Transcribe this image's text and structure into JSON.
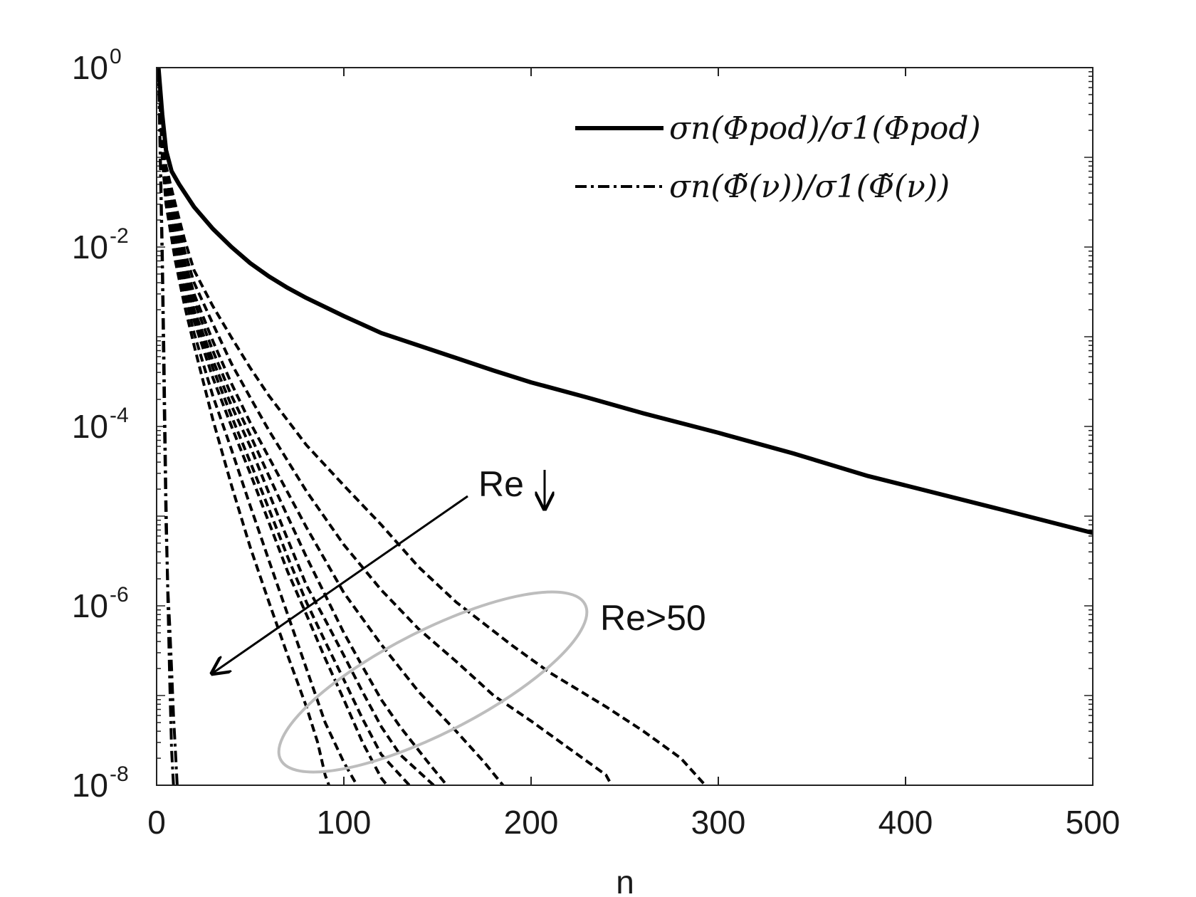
{
  "chart_data": {
    "type": "line",
    "xlabel": "n",
    "ylabel": "",
    "xlim": [
      0,
      500
    ],
    "ylim": [
      1e-08,
      1
    ],
    "yscale": "log",
    "grid": false,
    "legend_position": "top-right",
    "x_ticks": [
      "0",
      "100",
      "200",
      "300",
      "400",
      "500"
    ],
    "y_ticks": [
      {
        "base": "10",
        "exp": "0"
      },
      {
        "base": "10",
        "exp": "-2"
      },
      {
        "base": "10",
        "exp": "-4"
      },
      {
        "base": "10",
        "exp": "-6"
      },
      {
        "base": "10",
        "exp": "-8"
      }
    ],
    "legend": [
      {
        "label": "σn(Φpod)/σ1(Φpod)",
        "style": "solid"
      },
      {
        "label": "σn(Φ̃(ν))/σ1(Φ̃(ν))",
        "style": "dash-dot"
      }
    ],
    "series": [
      {
        "style": "solid",
        "points": [
          [
            1,
            1
          ],
          [
            3,
            0.3
          ],
          [
            5,
            0.12
          ],
          [
            8,
            0.07
          ],
          [
            12,
            0.05
          ],
          [
            20,
            0.028
          ],
          [
            30,
            0.016
          ],
          [
            40,
            0.01
          ],
          [
            50,
            0.0066
          ],
          [
            60,
            0.0047
          ],
          [
            70,
            0.0035
          ],
          [
            80,
            0.0027
          ],
          [
            100,
            0.0017
          ],
          [
            120,
            0.0011
          ],
          [
            150,
            0.00068
          ],
          [
            180,
            0.00042
          ],
          [
            200,
            0.00031
          ],
          [
            230,
            0.00021
          ],
          [
            260,
            0.00014
          ],
          [
            300,
            8.5e-05
          ],
          [
            340,
            5e-05
          ],
          [
            380,
            2.8e-05
          ],
          [
            400,
            2.2e-05
          ],
          [
            450,
            1.2e-05
          ],
          [
            500,
            6.5e-06
          ]
        ]
      },
      {
        "style": "dashed",
        "points": [
          [
            1,
            1
          ],
          [
            3,
            0.2
          ],
          [
            5,
            0.08
          ],
          [
            10,
            0.03
          ],
          [
            15,
            0.012
          ],
          [
            20,
            0.0055
          ],
          [
            30,
            0.0022
          ],
          [
            40,
            0.00098
          ],
          [
            50,
            0.00045
          ],
          [
            60,
            0.00022
          ],
          [
            80,
            6.2e-05
          ],
          [
            100,
            2.2e-05
          ],
          [
            120,
            8e-06
          ],
          [
            140,
            2.7e-06
          ],
          [
            160,
            1.1e-06
          ],
          [
            190,
            3.6e-07
          ],
          [
            210,
            1.8e-07
          ],
          [
            240,
            7.5e-08
          ],
          [
            260,
            4e-08
          ],
          [
            280,
            2e-08
          ],
          [
            293,
            1e-08
          ]
        ]
      },
      {
        "style": "dashed",
        "points": [
          [
            1,
            1
          ],
          [
            3,
            0.18
          ],
          [
            5,
            0.07
          ],
          [
            10,
            0.025
          ],
          [
            15,
            0.009
          ],
          [
            20,
            0.004
          ],
          [
            30,
            0.0014
          ],
          [
            40,
            0.0005
          ],
          [
            50,
            0.00021
          ],
          [
            60,
            9e-05
          ],
          [
            80,
            1.9e-05
          ],
          [
            100,
            4.8e-06
          ],
          [
            120,
            1.5e-06
          ],
          [
            140,
            5.5e-07
          ],
          [
            160,
            2.4e-07
          ],
          [
            180,
            1e-07
          ],
          [
            200,
            5.2e-08
          ],
          [
            220,
            2.6e-08
          ],
          [
            240,
            1.3e-08
          ],
          [
            243,
            1e-08
          ]
        ]
      },
      {
        "style": "dashed",
        "points": [
          [
            1,
            1
          ],
          [
            3,
            0.16
          ],
          [
            5,
            0.06
          ],
          [
            10,
            0.02
          ],
          [
            15,
            0.007
          ],
          [
            20,
            0.003
          ],
          [
            30,
            0.0009
          ],
          [
            40,
            0.0003
          ],
          [
            50,
            0.00011
          ],
          [
            60,
            4.5e-05
          ],
          [
            80,
            7.5e-06
          ],
          [
            100,
            1.4e-06
          ],
          [
            120,
            3.7e-07
          ],
          [
            140,
            1.1e-07
          ],
          [
            160,
            4e-08
          ],
          [
            175,
            1.8e-08
          ],
          [
            185,
            1e-08
          ]
        ]
      },
      {
        "style": "dashed",
        "points": [
          [
            1,
            1
          ],
          [
            3,
            0.15
          ],
          [
            5,
            0.055
          ],
          [
            10,
            0.017
          ],
          [
            15,
            0.006
          ],
          [
            20,
            0.0025
          ],
          [
            30,
            0.0007
          ],
          [
            40,
            0.00022
          ],
          [
            50,
            8e-05
          ],
          [
            60,
            2.8e-05
          ],
          [
            80,
            3.5e-06
          ],
          [
            100,
            5e-07
          ],
          [
            110,
            2.1e-07
          ],
          [
            120,
            9e-08
          ],
          [
            130,
            4.5e-08
          ],
          [
            145,
            1.8e-08
          ],
          [
            155,
            1e-08
          ]
        ]
      },
      {
        "style": "dashed",
        "points": [
          [
            1,
            1
          ],
          [
            3,
            0.14
          ],
          [
            5,
            0.05
          ],
          [
            10,
            0.015
          ],
          [
            15,
            0.005
          ],
          [
            20,
            0.002
          ],
          [
            30,
            0.00055
          ],
          [
            40,
            0.00017
          ],
          [
            50,
            6e-05
          ],
          [
            60,
            1.8e-05
          ],
          [
            70,
            5.5e-06
          ],
          [
            80,
            1.7e-06
          ],
          [
            90,
            7e-07
          ],
          [
            100,
            2.8e-07
          ],
          [
            110,
            1.1e-07
          ],
          [
            120,
            4.5e-08
          ],
          [
            130,
            2.2e-08
          ],
          [
            148,
            1e-08
          ]
        ]
      },
      {
        "style": "dashed",
        "points": [
          [
            1,
            1
          ],
          [
            3,
            0.13
          ],
          [
            5,
            0.045
          ],
          [
            10,
            0.013
          ],
          [
            15,
            0.0045
          ],
          [
            20,
            0.0018
          ],
          [
            30,
            0.00045
          ],
          [
            40,
            0.00013
          ],
          [
            50,
            4e-05
          ],
          [
            60,
            1.2e-05
          ],
          [
            70,
            3.5e-06
          ],
          [
            80,
            1.1e-06
          ],
          [
            90,
            4e-07
          ],
          [
            100,
            1.5e-07
          ],
          [
            110,
            5.5e-08
          ],
          [
            120,
            2.2e-08
          ],
          [
            135,
            1e-08
          ]
        ]
      },
      {
        "style": "dashed",
        "points": [
          [
            1,
            1
          ],
          [
            3,
            0.12
          ],
          [
            5,
            0.04
          ],
          [
            10,
            0.011
          ],
          [
            15,
            0.0038
          ],
          [
            20,
            0.0015
          ],
          [
            30,
            0.00035
          ],
          [
            40,
            0.0001
          ],
          [
            50,
            3e-05
          ],
          [
            60,
            8.5e-06
          ],
          [
            70,
            2.4e-06
          ],
          [
            80,
            8e-07
          ],
          [
            90,
            2.6e-07
          ],
          [
            100,
            9e-08
          ],
          [
            110,
            3e-08
          ],
          [
            120,
            1.2e-08
          ],
          [
            123,
            1e-08
          ]
        ]
      },
      {
        "style": "dashed",
        "points": [
          [
            1,
            1
          ],
          [
            3,
            0.11
          ],
          [
            5,
            0.035
          ],
          [
            10,
            0.009
          ],
          [
            15,
            0.003
          ],
          [
            20,
            0.0011
          ],
          [
            30,
            0.00022
          ],
          [
            40,
            5.5e-05
          ],
          [
            50,
            1.3e-05
          ],
          [
            55,
            6.5e-06
          ],
          [
            60,
            3.2e-06
          ],
          [
            70,
            8e-07
          ],
          [
            80,
            2e-07
          ],
          [
            90,
            5e-08
          ],
          [
            100,
            1.8e-08
          ],
          [
            107,
            1e-08
          ]
        ]
      },
      {
        "style": "dashed",
        "points": [
          [
            1,
            1
          ],
          [
            3,
            0.1
          ],
          [
            5,
            0.03
          ],
          [
            10,
            0.007
          ],
          [
            15,
            0.0022
          ],
          [
            20,
            0.0008
          ],
          [
            30,
            0.00012
          ],
          [
            40,
            2.2e-05
          ],
          [
            50,
            4.5e-06
          ],
          [
            60,
            1.1e-06
          ],
          [
            70,
            2.8e-07
          ],
          [
            80,
            7.5e-08
          ],
          [
            86,
            3e-08
          ],
          [
            90,
            1.3e-08
          ],
          [
            92,
            1e-08
          ]
        ]
      },
      {
        "style": "dash-dot",
        "points": [
          [
            1,
            1
          ],
          [
            2,
            0.1
          ],
          [
            3,
            0.01
          ],
          [
            4,
            0.0005
          ],
          [
            5,
            1.5e-05
          ],
          [
            6,
            1.2e-06
          ],
          [
            7,
            1.5e-07
          ],
          [
            8,
            2.5e-08
          ],
          [
            9,
            1e-08
          ]
        ]
      },
      {
        "style": "dash-dot",
        "points": [
          [
            1,
            1
          ],
          [
            2,
            0.08
          ],
          [
            3,
            0.006
          ],
          [
            4,
            0.0002
          ],
          [
            5,
            8e-06
          ],
          [
            6,
            1.5e-06
          ],
          [
            7,
            6e-07
          ],
          [
            8,
            2e-07
          ],
          [
            9,
            6e-08
          ],
          [
            10,
            2.5e-08
          ],
          [
            11,
            1e-08
          ]
        ]
      }
    ],
    "annotations": [
      {
        "text": "Re",
        "arrow": "down",
        "kind": "trend-arrow"
      },
      {
        "text": "Re>50",
        "kind": "ellipse-label"
      }
    ]
  }
}
